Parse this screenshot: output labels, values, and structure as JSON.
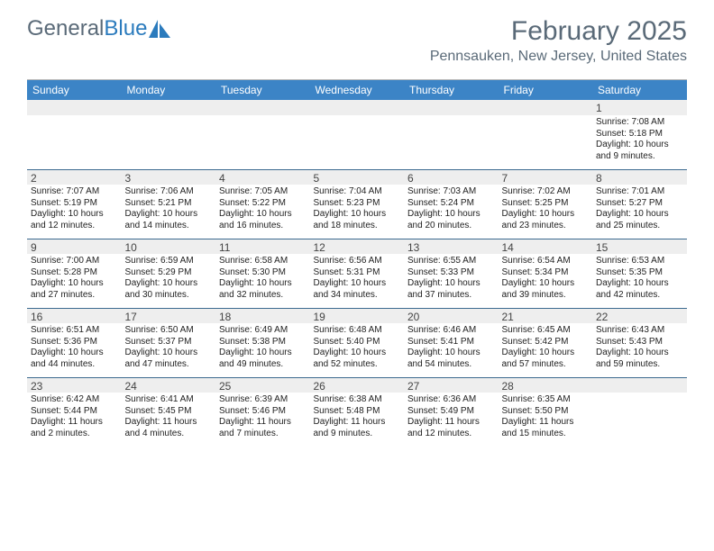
{
  "brand": {
    "part1": "General",
    "part2": "Blue"
  },
  "title": "February 2025",
  "location": "Pennsauken, New Jersey, United States",
  "colors": {
    "header_bg": "#3c84c6",
    "header_text": "#ffffff",
    "div_line": "#3c6a8f",
    "daynum_bg": "#eeeeee",
    "brand_gray": "#5a6a78",
    "brand_blue": "#2b7bbd"
  },
  "day_headers": [
    "Sunday",
    "Monday",
    "Tuesday",
    "Wednesday",
    "Thursday",
    "Friday",
    "Saturday"
  ],
  "weeks": [
    {
      "nums": [
        "",
        "",
        "",
        "",
        "",
        "",
        "1"
      ],
      "cells": [
        {},
        {},
        {},
        {},
        {},
        {},
        {
          "sunrise": "Sunrise: 7:08 AM",
          "sunset": "Sunset: 5:18 PM",
          "daylight": "Daylight: 10 hours and 9 minutes."
        }
      ]
    },
    {
      "nums": [
        "2",
        "3",
        "4",
        "5",
        "6",
        "7",
        "8"
      ],
      "cells": [
        {
          "sunrise": "Sunrise: 7:07 AM",
          "sunset": "Sunset: 5:19 PM",
          "daylight": "Daylight: 10 hours and 12 minutes."
        },
        {
          "sunrise": "Sunrise: 7:06 AM",
          "sunset": "Sunset: 5:21 PM",
          "daylight": "Daylight: 10 hours and 14 minutes."
        },
        {
          "sunrise": "Sunrise: 7:05 AM",
          "sunset": "Sunset: 5:22 PM",
          "daylight": "Daylight: 10 hours and 16 minutes."
        },
        {
          "sunrise": "Sunrise: 7:04 AM",
          "sunset": "Sunset: 5:23 PM",
          "daylight": "Daylight: 10 hours and 18 minutes."
        },
        {
          "sunrise": "Sunrise: 7:03 AM",
          "sunset": "Sunset: 5:24 PM",
          "daylight": "Daylight: 10 hours and 20 minutes."
        },
        {
          "sunrise": "Sunrise: 7:02 AM",
          "sunset": "Sunset: 5:25 PM",
          "daylight": "Daylight: 10 hours and 23 minutes."
        },
        {
          "sunrise": "Sunrise: 7:01 AM",
          "sunset": "Sunset: 5:27 PM",
          "daylight": "Daylight: 10 hours and 25 minutes."
        }
      ]
    },
    {
      "nums": [
        "9",
        "10",
        "11",
        "12",
        "13",
        "14",
        "15"
      ],
      "cells": [
        {
          "sunrise": "Sunrise: 7:00 AM",
          "sunset": "Sunset: 5:28 PM",
          "daylight": "Daylight: 10 hours and 27 minutes."
        },
        {
          "sunrise": "Sunrise: 6:59 AM",
          "sunset": "Sunset: 5:29 PM",
          "daylight": "Daylight: 10 hours and 30 minutes."
        },
        {
          "sunrise": "Sunrise: 6:58 AM",
          "sunset": "Sunset: 5:30 PM",
          "daylight": "Daylight: 10 hours and 32 minutes."
        },
        {
          "sunrise": "Sunrise: 6:56 AM",
          "sunset": "Sunset: 5:31 PM",
          "daylight": "Daylight: 10 hours and 34 minutes."
        },
        {
          "sunrise": "Sunrise: 6:55 AM",
          "sunset": "Sunset: 5:33 PM",
          "daylight": "Daylight: 10 hours and 37 minutes."
        },
        {
          "sunrise": "Sunrise: 6:54 AM",
          "sunset": "Sunset: 5:34 PM",
          "daylight": "Daylight: 10 hours and 39 minutes."
        },
        {
          "sunrise": "Sunrise: 6:53 AM",
          "sunset": "Sunset: 5:35 PM",
          "daylight": "Daylight: 10 hours and 42 minutes."
        }
      ]
    },
    {
      "nums": [
        "16",
        "17",
        "18",
        "19",
        "20",
        "21",
        "22"
      ],
      "cells": [
        {
          "sunrise": "Sunrise: 6:51 AM",
          "sunset": "Sunset: 5:36 PM",
          "daylight": "Daylight: 10 hours and 44 minutes."
        },
        {
          "sunrise": "Sunrise: 6:50 AM",
          "sunset": "Sunset: 5:37 PM",
          "daylight": "Daylight: 10 hours and 47 minutes."
        },
        {
          "sunrise": "Sunrise: 6:49 AM",
          "sunset": "Sunset: 5:38 PM",
          "daylight": "Daylight: 10 hours and 49 minutes."
        },
        {
          "sunrise": "Sunrise: 6:48 AM",
          "sunset": "Sunset: 5:40 PM",
          "daylight": "Daylight: 10 hours and 52 minutes."
        },
        {
          "sunrise": "Sunrise: 6:46 AM",
          "sunset": "Sunset: 5:41 PM",
          "daylight": "Daylight: 10 hours and 54 minutes."
        },
        {
          "sunrise": "Sunrise: 6:45 AM",
          "sunset": "Sunset: 5:42 PM",
          "daylight": "Daylight: 10 hours and 57 minutes."
        },
        {
          "sunrise": "Sunrise: 6:43 AM",
          "sunset": "Sunset: 5:43 PM",
          "daylight": "Daylight: 10 hours and 59 minutes."
        }
      ]
    },
    {
      "nums": [
        "23",
        "24",
        "25",
        "26",
        "27",
        "28",
        ""
      ],
      "cells": [
        {
          "sunrise": "Sunrise: 6:42 AM",
          "sunset": "Sunset: 5:44 PM",
          "daylight": "Daylight: 11 hours and 2 minutes."
        },
        {
          "sunrise": "Sunrise: 6:41 AM",
          "sunset": "Sunset: 5:45 PM",
          "daylight": "Daylight: 11 hours and 4 minutes."
        },
        {
          "sunrise": "Sunrise: 6:39 AM",
          "sunset": "Sunset: 5:46 PM",
          "daylight": "Daylight: 11 hours and 7 minutes."
        },
        {
          "sunrise": "Sunrise: 6:38 AM",
          "sunset": "Sunset: 5:48 PM",
          "daylight": "Daylight: 11 hours and 9 minutes."
        },
        {
          "sunrise": "Sunrise: 6:36 AM",
          "sunset": "Sunset: 5:49 PM",
          "daylight": "Daylight: 11 hours and 12 minutes."
        },
        {
          "sunrise": "Sunrise: 6:35 AM",
          "sunset": "Sunset: 5:50 PM",
          "daylight": "Daylight: 11 hours and 15 minutes."
        },
        {}
      ]
    }
  ]
}
